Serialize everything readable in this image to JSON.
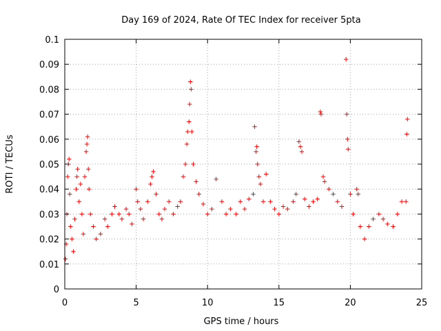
{
  "chart_data": {
    "type": "scatter",
    "title": "Day 169 of 2024, Rate Of TEC Index for receiver 5pta",
    "xlabel": "GPS time / hours",
    "ylabel": "ROTI / TECUs",
    "xlim": [
      0,
      25
    ],
    "ylim": [
      0,
      0.1
    ],
    "xticks": [
      0,
      5,
      10,
      15,
      20,
      25
    ],
    "yticks": [
      0,
      0.01,
      0.02,
      0.03,
      0.04,
      0.05,
      0.06,
      0.07,
      0.08,
      0.09,
      0.1
    ],
    "xtick_labels": [
      "0",
      "5",
      "10",
      "15",
      "20",
      "25"
    ],
    "ytick_labels": [
      "0",
      "0.01",
      "0.02",
      "0.03",
      "0.04",
      "0.05",
      "0.06",
      "0.07",
      "0.08",
      "0.09",
      "0.1"
    ],
    "grid": true,
    "marker": "+",
    "color": "#ff0000",
    "series": [
      {
        "points": [
          [
            0.05,
            0.012
          ],
          [
            0.1,
            0.018
          ],
          [
            0.15,
            0.03
          ],
          [
            0.2,
            0.045
          ],
          [
            0.25,
            0.05
          ],
          [
            0.3,
            0.052
          ],
          [
            0.35,
            0.038
          ],
          [
            0.4,
            0.025
          ],
          [
            0.5,
            0.02
          ],
          [
            0.6,
            0.015
          ],
          [
            0.7,
            0.028
          ],
          [
            0.8,
            0.04
          ],
          [
            0.85,
            0.045
          ],
          [
            0.9,
            0.048
          ],
          [
            1.0,
            0.035
          ],
          [
            1.1,
            0.042
          ],
          [
            1.2,
            0.03
          ],
          [
            1.3,
            0.022
          ],
          [
            1.4,
            0.045
          ],
          [
            1.5,
            0.055
          ],
          [
            1.55,
            0.058
          ],
          [
            1.6,
            0.061
          ],
          [
            1.65,
            0.048
          ],
          [
            1.7,
            0.04
          ],
          [
            1.8,
            0.03
          ],
          [
            2.0,
            0.025
          ],
          [
            2.2,
            0.02
          ],
          [
            2.5,
            0.022
          ],
          [
            2.8,
            0.028
          ],
          [
            3.0,
            0.025
          ],
          [
            3.3,
            0.03
          ],
          [
            3.5,
            0.033
          ],
          [
            3.8,
            0.03
          ],
          [
            4.0,
            0.028
          ],
          [
            4.3,
            0.032
          ],
          [
            4.5,
            0.03
          ],
          [
            4.7,
            0.026
          ],
          [
            5.0,
            0.04
          ],
          [
            5.1,
            0.035
          ],
          [
            5.3,
            0.032
          ],
          [
            5.5,
            0.028
          ],
          [
            5.8,
            0.035
          ],
          [
            6.0,
            0.042
          ],
          [
            6.1,
            0.045
          ],
          [
            6.2,
            0.047
          ],
          [
            6.4,
            0.038
          ],
          [
            6.6,
            0.03
          ],
          [
            6.8,
            0.028
          ],
          [
            7.0,
            0.032
          ],
          [
            7.3,
            0.035
          ],
          [
            7.6,
            0.03
          ],
          [
            7.9,
            0.033
          ],
          [
            8.1,
            0.035
          ],
          [
            8.3,
            0.045
          ],
          [
            8.45,
            0.05
          ],
          [
            8.55,
            0.058
          ],
          [
            8.6,
            0.063
          ],
          [
            8.7,
            0.067
          ],
          [
            8.75,
            0.074
          ],
          [
            8.8,
            0.083
          ],
          [
            8.85,
            0.08
          ],
          [
            8.9,
            0.063
          ],
          [
            9.0,
            0.05
          ],
          [
            9.2,
            0.043
          ],
          [
            9.4,
            0.038
          ],
          [
            9.7,
            0.034
          ],
          [
            10.0,
            0.03
          ],
          [
            10.3,
            0.032
          ],
          [
            10.6,
            0.044
          ],
          [
            11.0,
            0.035
          ],
          [
            11.3,
            0.03
          ],
          [
            11.6,
            0.032
          ],
          [
            12.0,
            0.03
          ],
          [
            12.3,
            0.035
          ],
          [
            12.6,
            0.032
          ],
          [
            12.9,
            0.036
          ],
          [
            13.2,
            0.038
          ],
          [
            13.3,
            0.065
          ],
          [
            13.4,
            0.055
          ],
          [
            13.45,
            0.057
          ],
          [
            13.5,
            0.05
          ],
          [
            13.6,
            0.045
          ],
          [
            13.7,
            0.042
          ],
          [
            13.9,
            0.035
          ],
          [
            14.1,
            0.046
          ],
          [
            14.4,
            0.035
          ],
          [
            14.7,
            0.032
          ],
          [
            15.0,
            0.03
          ],
          [
            15.3,
            0.033
          ],
          [
            15.6,
            0.032
          ],
          [
            16.0,
            0.035
          ],
          [
            16.2,
            0.038
          ],
          [
            16.4,
            0.059
          ],
          [
            16.5,
            0.057
          ],
          [
            16.6,
            0.055
          ],
          [
            16.8,
            0.036
          ],
          [
            17.1,
            0.033
          ],
          [
            17.4,
            0.035
          ],
          [
            17.7,
            0.036
          ],
          [
            17.9,
            0.071
          ],
          [
            17.95,
            0.07
          ],
          [
            18.1,
            0.045
          ],
          [
            18.2,
            0.043
          ],
          [
            18.5,
            0.04
          ],
          [
            18.8,
            0.038
          ],
          [
            19.1,
            0.035
          ],
          [
            19.4,
            0.033
          ],
          [
            19.7,
            0.092
          ],
          [
            19.75,
            0.07
          ],
          [
            19.8,
            0.06
          ],
          [
            19.85,
            0.056
          ],
          [
            20.0,
            0.038
          ],
          [
            20.2,
            0.03
          ],
          [
            20.45,
            0.04
          ],
          [
            20.55,
            0.038
          ],
          [
            20.7,
            0.025
          ],
          [
            21.0,
            0.02
          ],
          [
            21.3,
            0.025
          ],
          [
            21.6,
            0.028
          ],
          [
            22.0,
            0.03
          ],
          [
            22.3,
            0.028
          ],
          [
            22.6,
            0.026
          ],
          [
            23.0,
            0.025
          ],
          [
            23.3,
            0.03
          ],
          [
            23.6,
            0.035
          ],
          [
            23.9,
            0.035
          ],
          [
            23.95,
            0.062
          ],
          [
            24.0,
            0.068
          ]
        ]
      }
    ]
  }
}
